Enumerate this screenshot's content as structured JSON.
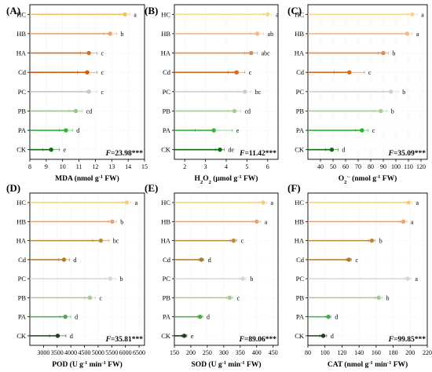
{
  "chart_data": [
    {
      "type": "lollipop",
      "panel_label": "(A)",
      "categories": [
        "HC",
        "HB",
        "HA",
        "Cd",
        "PC",
        "PB",
        "PA",
        "CK"
      ],
      "values": [
        13.8,
        12.9,
        11.6,
        11.5,
        11.6,
        10.8,
        10.2,
        9.3
      ],
      "errors": [
        0.3,
        0.4,
        0.5,
        0.6,
        0.5,
        0.4,
        0.4,
        0.5
      ],
      "letters": [
        "a",
        "b",
        "c",
        "c",
        "c",
        "cd",
        "d",
        "e"
      ],
      "colors": [
        "#ecc46a",
        "#eea56a",
        "#d9701f",
        "#d25f14",
        "#c8c8c8",
        "#97c784",
        "#2fb32f",
        "#0e6a10"
      ],
      "xlabel_parts": [
        {
          "t": "MDA (nmol g"
        },
        {
          "t": "-1",
          "sup": true
        },
        {
          "t": " FW)"
        }
      ],
      "xlim": [
        8,
        15
      ],
      "xticks": [
        8,
        9,
        10,
        11,
        12,
        13,
        14,
        15
      ],
      "f_stat": "=23.98***"
    },
    {
      "type": "lollipop",
      "panel_label": "(B)",
      "categories": [
        "HC",
        "HB",
        "HA",
        "Cd",
        "PC",
        "PB",
        "PA",
        "CK"
      ],
      "values": [
        6.0,
        5.5,
        5.2,
        4.5,
        4.9,
        4.4,
        3.4,
        3.7
      ],
      "errors": [
        0.2,
        0.3,
        0.3,
        0.4,
        0.3,
        0.3,
        0.9,
        0.2
      ],
      "letters": [
        "a",
        "ab",
        "abc",
        "c",
        "bc",
        "cd",
        "e",
        "de"
      ],
      "colors": [
        "#f3d98f",
        "#f1b98f",
        "#e08a55",
        "#d26a22",
        "#cfcfcf",
        "#a4cf93",
        "#37b437",
        "#0e6a10"
      ],
      "xlabel_parts": [
        {
          "t": "H"
        },
        {
          "t": "2",
          "sub": true
        },
        {
          "t": "O"
        },
        {
          "t": "2",
          "sub": true
        },
        {
          "t": " (μmol g"
        },
        {
          "t": "-1",
          "sup": true
        },
        {
          "t": " FW)"
        }
      ],
      "xlim": [
        1.5,
        6.5
      ],
      "xticks": [
        2,
        3,
        4,
        5,
        6
      ],
      "f_stat": "=11.42***"
    },
    {
      "type": "lollipop",
      "panel_label": "(C)",
      "categories": [
        "HC",
        "HB",
        "HA",
        "Cd",
        "PC",
        "PB",
        "PA",
        "CK"
      ],
      "values": [
        113,
        109,
        90,
        63,
        96,
        88,
        73,
        49
      ],
      "errors": [
        4,
        4,
        4,
        12,
        6,
        5,
        5,
        5
      ],
      "letters": [
        "a",
        "a",
        "b",
        "c",
        "b",
        "b",
        "c",
        "d"
      ],
      "colors": [
        "#f3d98f",
        "#f1b98f",
        "#e08a55",
        "#d26a22",
        "#d0d0d0",
        "#a4cf93",
        "#2fb32f",
        "#0e6a10"
      ],
      "xlabel_parts": [
        {
          "t": "O"
        },
        {
          "t": "2",
          "sub": true
        },
        {
          "t": "·-",
          "sup": true
        },
        {
          "t": " (nmol g"
        },
        {
          "t": "-1",
          "sup": true
        },
        {
          "t": " FW)"
        }
      ],
      "xlim": [
        30,
        125
      ],
      "xticks": [
        40,
        50,
        60,
        70,
        80,
        90,
        100,
        110,
        120
      ],
      "f_stat": "=35.09***"
    },
    {
      "type": "lollipop",
      "panel_label": "(D)",
      "categories": [
        "HC",
        "HB",
        "HA",
        "Cd",
        "PC",
        "PB",
        "PA",
        "CK"
      ],
      "values": [
        6050,
        5520,
        5100,
        3750,
        5450,
        4700,
        3800,
        3520
      ],
      "errors": [
        150,
        150,
        300,
        200,
        200,
        200,
        200,
        300
      ],
      "letters": [
        "a",
        "b",
        "bc",
        "d",
        "b",
        "c",
        "d",
        "d"
      ],
      "colors": [
        "#f0d07e",
        "#e0a57a",
        "#b98b3a",
        "#b07a2a",
        "#d6d6d6",
        "#a9c88f",
        "#49ac49",
        "#184418"
      ],
      "xlabel_parts": [
        {
          "t": "POD (U g"
        },
        {
          "t": "-1",
          "sup": true
        },
        {
          "t": " min"
        },
        {
          "t": "-1",
          "sup": true
        },
        {
          "t": " FW)"
        }
      ],
      "xlim": [
        2500,
        6700
      ],
      "xticks": [
        3000,
        3500,
        4000,
        4500,
        5000,
        5500,
        6000,
        6500
      ],
      "f_stat": "=35.81***"
    },
    {
      "type": "lollipop",
      "panel_label": "(E)",
      "categories": [
        "HC",
        "HB",
        "HA",
        "Cd",
        "PC",
        "PB",
        "PA",
        "CK"
      ],
      "values": [
        420,
        400,
        330,
        232,
        358,
        318,
        228,
        180
      ],
      "errors": [
        10,
        12,
        10,
        8,
        10,
        10,
        8,
        8
      ],
      "letters": [
        "a",
        "a",
        "c",
        "d",
        "b",
        "c",
        "d",
        "e"
      ],
      "colors": [
        "#f0d07e",
        "#e0a57a",
        "#b98b3a",
        "#b07a2a",
        "#d6d6d6",
        "#a9c88f",
        "#49ac49",
        "#184418"
      ],
      "xlabel_parts": [
        {
          "t": "SOD (U g"
        },
        {
          "t": "-1",
          "sup": true
        },
        {
          "t": " min"
        },
        {
          "t": "-1",
          "sup": true
        },
        {
          "t": " FW)"
        }
      ],
      "xlim": [
        150,
        465
      ],
      "xticks": [
        150,
        200,
        250,
        300,
        350,
        400,
        450
      ],
      "f_stat": "=89.06***"
    },
    {
      "type": "lollipop",
      "panel_label": "(F)",
      "categories": [
        "HC",
        "HB",
        "HA",
        "Cd",
        "PC",
        "PB",
        "PA",
        "CK"
      ],
      "values": [
        198,
        192,
        155,
        128,
        197,
        163,
        104,
        98
      ],
      "errors": [
        4,
        4,
        4,
        3,
        4,
        4,
        3,
        4
      ],
      "letters": [
        "a",
        "a",
        "b",
        "c",
        "a",
        "b",
        "d",
        "d"
      ],
      "colors": [
        "#f0d07e",
        "#e0a57a",
        "#b98b3a",
        "#b07a2a",
        "#d6d6d6",
        "#a9c88f",
        "#49ac49",
        "#184418"
      ],
      "xlabel_parts": [
        {
          "t": "CAT  (nmol g"
        },
        {
          "t": "-1",
          "sup": true
        },
        {
          "t": " min"
        },
        {
          "t": "-1",
          "sup": true
        },
        {
          "t": " FW)"
        }
      ],
      "xlim": [
        80,
        220
      ],
      "xticks": [
        80,
        100,
        120,
        140,
        160,
        180,
        200,
        220
      ],
      "f_stat": "=99.85***"
    }
  ]
}
